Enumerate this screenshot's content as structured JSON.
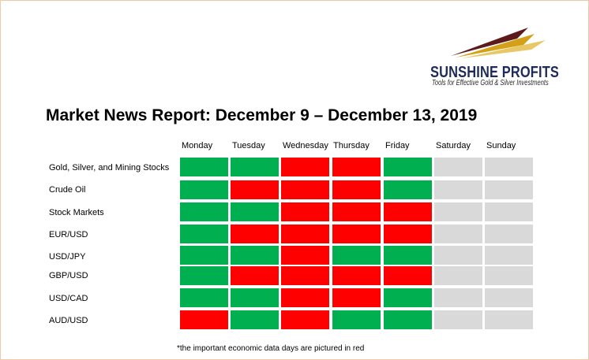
{
  "logo": {
    "brand": "SUNSHINE PROFITS",
    "tagline": "Tools for Effective Gold & Silver Investments",
    "colors": {
      "dark": "#5c1a1a",
      "gold": "#d4a017",
      "navy": "#1e2a5a"
    }
  },
  "title": "Market News Report: December 9 – December 13, 2019",
  "days": [
    "Monday",
    "Tuesday",
    "Wednesday",
    "Thursday",
    "Friday",
    "Saturday",
    "Sunday"
  ],
  "colors": {
    "green": "#00b050",
    "red": "#ff0000",
    "gray": "#d9d9d9"
  },
  "rows": [
    {
      "label": "Gold, Silver, and Mining Stocks",
      "status": [
        "green",
        "green",
        "red",
        "red",
        "green",
        "gray",
        "gray"
      ]
    },
    {
      "label": "Crude Oil",
      "status": [
        "green",
        "red",
        "red",
        "red",
        "green",
        "gray",
        "gray"
      ]
    },
    {
      "label": "Stock Markets",
      "status": [
        "green",
        "green",
        "red",
        "red",
        "red",
        "gray",
        "gray"
      ]
    },
    {
      "label": "EUR/USD",
      "status": [
        "green",
        "red",
        "red",
        "red",
        "red",
        "gray",
        "gray"
      ]
    },
    {
      "label": "USD/JPY",
      "status": [
        "green",
        "green",
        "red",
        "green",
        "green",
        "gray",
        "gray"
      ]
    },
    {
      "label": "GBP/USD",
      "status": [
        "green",
        "red",
        "red",
        "red",
        "red",
        "gray",
        "gray"
      ]
    },
    {
      "label": "USD/CAD",
      "status": [
        "green",
        "green",
        "red",
        "red",
        "green",
        "gray",
        "gray"
      ]
    },
    {
      "label": "AUD/USD",
      "status": [
        "red",
        "green",
        "red",
        "green",
        "green",
        "gray",
        "gray"
      ]
    }
  ],
  "note": "*the important economic data days are pictured in red"
}
